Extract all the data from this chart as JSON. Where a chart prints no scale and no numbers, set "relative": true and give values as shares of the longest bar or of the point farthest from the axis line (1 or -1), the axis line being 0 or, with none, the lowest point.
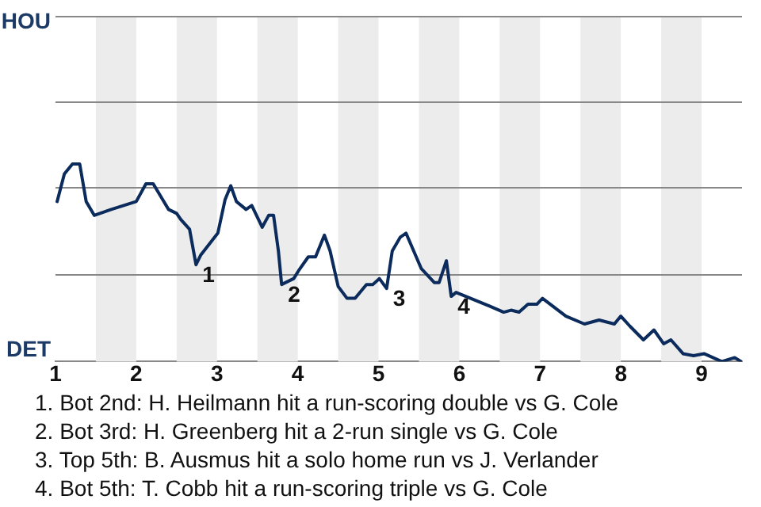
{
  "chart_data": {
    "type": "line",
    "relative": true,
    "x": [
      1.02,
      1.11,
      1.21,
      1.3,
      1.38,
      1.48,
      1.69,
      2.0,
      2.12,
      2.21,
      2.4,
      2.5,
      2.55,
      2.66,
      2.74,
      2.8,
      3.01,
      3.1,
      3.17,
      3.24,
      3.36,
      3.43,
      3.56,
      3.64,
      3.7,
      3.76,
      3.8,
      3.95,
      4.01,
      4.13,
      4.22,
      4.33,
      4.4,
      4.5,
      4.61,
      4.71,
      4.85,
      4.93,
      5.01,
      5.1,
      5.17,
      5.27,
      5.34,
      5.53,
      5.69,
      5.75,
      5.84,
      5.9,
      5.96,
      6.38,
      6.55,
      6.64,
      6.74,
      6.85,
      6.96,
      7.03,
      7.32,
      7.55,
      7.73,
      7.92,
      8.0,
      8.11,
      8.28,
      8.41,
      8.53,
      8.62,
      8.77,
      8.9,
      9.03,
      9.25,
      9.41,
      9.49
    ],
    "series": [
      {
        "color": "#0b2b5c",
        "values": [
          0.81,
          0.95,
          1,
          1,
          0.81,
          0.74,
          0.77,
          0.81,
          0.9,
          0.9,
          0.77,
          0.75,
          0.72,
          0.67,
          0.49,
          0.54,
          0.65,
          0.82,
          0.89,
          0.81,
          0.77,
          0.79,
          0.68,
          0.74,
          0.74,
          0.56,
          0.39,
          0.42,
          0.46,
          0.53,
          0.53,
          0.64,
          0.56,
          0.38,
          0.32,
          0.32,
          0.39,
          0.39,
          0.42,
          0.37,
          0.56,
          0.63,
          0.65,
          0.47,
          0.4,
          0.4,
          0.51,
          0.33,
          0.35,
          0.28,
          0.25,
          0.26,
          0.25,
          0.29,
          0.29,
          0.32,
          0.23,
          0.19,
          0.21,
          0.19,
          0.23,
          0.18,
          0.11,
          0.16,
          0.09,
          0.11,
          0.04,
          0.03,
          0.04,
          0,
          0.02,
          0
        ]
      }
    ],
    "xlim": [
      1,
      9.5
    ],
    "xticks": [
      1,
      2,
      3,
      4,
      5,
      6,
      7,
      8,
      9
    ],
    "ref_lines": [
      {
        "axis": "y",
        "value": 0.44,
        "color": "#888888"
      },
      {
        "axis": "y",
        "value": 0.88,
        "color": "#888888"
      },
      {
        "axis": "y",
        "value": 1.32,
        "color": "#888888"
      },
      {
        "axis": "y",
        "value": 1.75,
        "color": "#888888"
      }
    ],
    "marker": "none",
    "line_style": "solid",
    "bands": [
      {
        "axis": "x",
        "from": 1.5,
        "to": 2,
        "color": "#ececec"
      },
      {
        "axis": "x",
        "from": 2.5,
        "to": 3,
        "color": "#ececec"
      },
      {
        "axis": "x",
        "from": 3.5,
        "to": 4,
        "color": "#ececec"
      },
      {
        "axis": "x",
        "from": 4.5,
        "to": 5,
        "color": "#ececec"
      },
      {
        "axis": "x",
        "from": 5.5,
        "to": 6,
        "color": "#ececec"
      },
      {
        "axis": "x",
        "from": 6.5,
        "to": 7,
        "color": "#ececec"
      },
      {
        "axis": "x",
        "from": 7.5,
        "to": 8,
        "color": "#ececec"
      },
      {
        "axis": "x",
        "from": 8.5,
        "to": 9,
        "color": "#ececec"
      }
    ],
    "annotations": [
      "HOU",
      "DET",
      {
        "text": "1",
        "x": 2.74,
        "y": 0.49
      },
      {
        "text": "2",
        "x": 3.8,
        "y": 0.39
      },
      {
        "text": "3",
        "x": 5.1,
        "y": 0.37
      },
      {
        "text": "4",
        "x": 5.9,
        "y": 0.33
      },
      "1. Bot 2nd: H. Heilmann hit a run-scoring double vs G. Cole",
      "2. Bot 3rd: H. Greenberg hit a 2-run single vs G. Cole",
      "3. Top 5th: B. Ausmus hit a solo home run vs J. Verlander",
      "4. Bot 5th: T. Cobb hit a run-scoring triple vs G. Cole"
    ]
  }
}
